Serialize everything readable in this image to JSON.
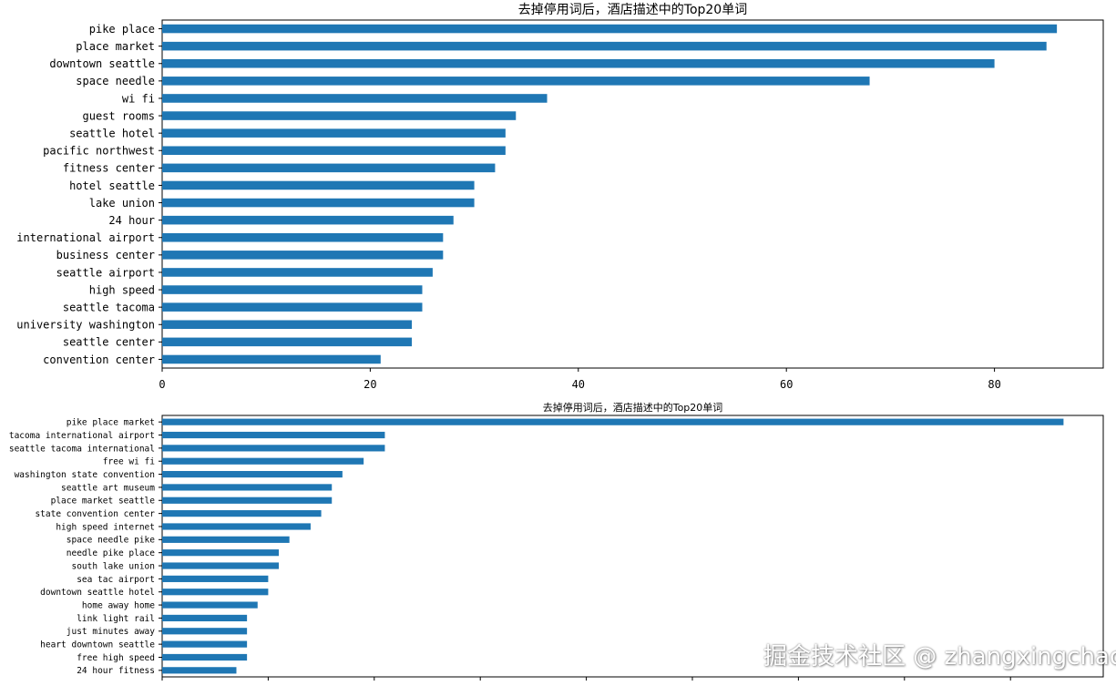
{
  "chart_data": [
    {
      "type": "bar",
      "orientation": "horizontal",
      "title": "去掉停用词后，酒店描述中的Top20单词",
      "categories": [
        "pike place",
        "place market",
        "downtown seattle",
        "space needle",
        "wi fi",
        "guest rooms",
        "seattle hotel",
        "pacific northwest",
        "fitness center",
        "hotel seattle",
        "lake union",
        "24 hour",
        "international airport",
        "business center",
        "seattle airport",
        "high speed",
        "seattle tacoma",
        "university washington",
        "seattle center",
        "convention center"
      ],
      "values": [
        86,
        85,
        80,
        68,
        37,
        34,
        33,
        33,
        32,
        30,
        30,
        28,
        27,
        27,
        26,
        25,
        25,
        24,
        24,
        21
      ],
      "xlim": [
        0,
        90
      ],
      "xticks": [
        0,
        20,
        40,
        60,
        80
      ],
      "color": "#1f77b4"
    },
    {
      "type": "bar",
      "orientation": "horizontal",
      "title": "去掉停用词后，酒店描述中的Top20单词",
      "categories": [
        "pike place market",
        "tacoma international airport",
        "seattle tacoma international",
        "free wi fi",
        "washington state convention",
        "seattle art museum",
        "place market seattle",
        "state convention center",
        "high speed internet",
        "space needle pike",
        "needle pike place",
        "south lake union",
        "sea tac airport",
        "downtown seattle hotel",
        "home away home",
        "link light rail",
        "just minutes away",
        "heart downtown seattle",
        "free high speed",
        "24 hour fitness"
      ],
      "values": [
        85,
        21,
        21,
        19,
        17,
        16,
        16,
        15,
        14,
        12,
        11,
        11,
        10,
        10,
        9,
        8,
        8,
        8,
        8,
        7
      ],
      "xlim": [
        0,
        89
      ],
      "xticks": [
        0,
        10,
        20,
        30,
        40,
        50,
        60,
        70,
        80
      ],
      "color": "#1f77b4"
    }
  ],
  "watermark": "掘金技术社区 @ zhangxingchao"
}
